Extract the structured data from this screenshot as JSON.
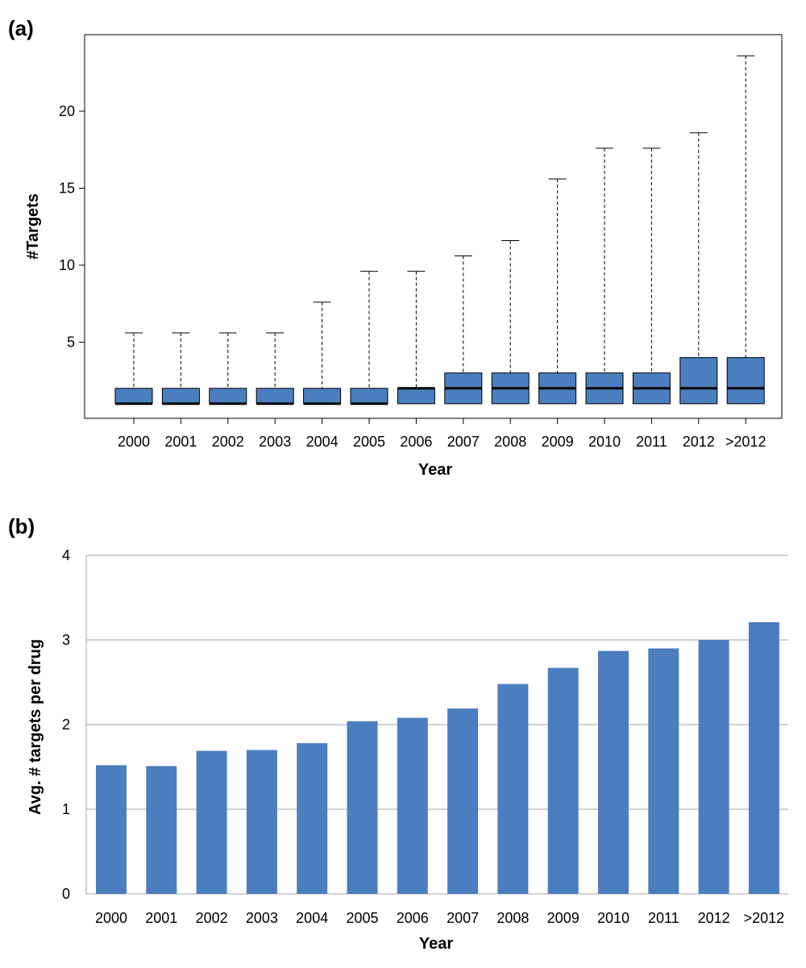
{
  "panel_labels": {
    "a": "(a)",
    "b": "(b)"
  },
  "colors": {
    "fill": "#4a7ebf",
    "median": "#000000",
    "grid": "#a6a6a6"
  },
  "chart_data": [
    {
      "id": "a",
      "type": "boxplot",
      "xlabel": "Year",
      "ylabel": "#Targets",
      "categories": [
        "2000",
        "2001",
        "2002",
        "2003",
        "2004",
        "2005",
        "2006",
        "2007",
        "2008",
        "2009",
        "2010",
        "2011",
        "2012",
        ">2012"
      ],
      "yticks": [
        5,
        10,
        15,
        20
      ],
      "ylim": [
        0,
        25
      ],
      "grid": false,
      "boxes": [
        {
          "min": 1,
          "q1": 1,
          "median": 1,
          "q3": 2,
          "max": 5.6
        },
        {
          "min": 1,
          "q1": 1,
          "median": 1,
          "q3": 2,
          "max": 5.6
        },
        {
          "min": 1,
          "q1": 1,
          "median": 1,
          "q3": 2,
          "max": 5.6
        },
        {
          "min": 1,
          "q1": 1,
          "median": 1,
          "q3": 2,
          "max": 5.6
        },
        {
          "min": 1,
          "q1": 1,
          "median": 1,
          "q3": 2,
          "max": 7.6
        },
        {
          "min": 1,
          "q1": 1,
          "median": 1,
          "q3": 2,
          "max": 9.6
        },
        {
          "min": 1,
          "q1": 1,
          "median": 2,
          "q3": 2,
          "max": 9.6
        },
        {
          "min": 1,
          "q1": 1,
          "median": 2,
          "q3": 3,
          "max": 10.6
        },
        {
          "min": 1,
          "q1": 1,
          "median": 2,
          "q3": 3,
          "max": 11.6
        },
        {
          "min": 1,
          "q1": 1,
          "median": 2,
          "q3": 3,
          "max": 15.6
        },
        {
          "min": 1,
          "q1": 1,
          "median": 2,
          "q3": 3,
          "max": 17.6
        },
        {
          "min": 1,
          "q1": 1,
          "median": 2,
          "q3": 3,
          "max": 17.6
        },
        {
          "min": 1,
          "q1": 1,
          "median": 2,
          "q3": 4,
          "max": 18.6
        },
        {
          "min": 1,
          "q1": 1,
          "median": 2,
          "q3": 4,
          "max": 23.6
        }
      ]
    },
    {
      "id": "b",
      "type": "bar",
      "xlabel": "Year",
      "ylabel": "Avg. # targets per drug",
      "categories": [
        "2000",
        "2001",
        "2002",
        "2003",
        "2004",
        "2005",
        "2006",
        "2007",
        "2008",
        "2009",
        "2010",
        "2011",
        "2012",
        ">2012"
      ],
      "values": [
        1.52,
        1.51,
        1.69,
        1.7,
        1.78,
        2.04,
        2.08,
        2.19,
        2.48,
        2.67,
        2.87,
        2.9,
        3.0,
        3.21
      ],
      "yticks": [
        0,
        1,
        2,
        3,
        4
      ],
      "ylim": [
        0,
        4
      ],
      "grid": true
    }
  ]
}
